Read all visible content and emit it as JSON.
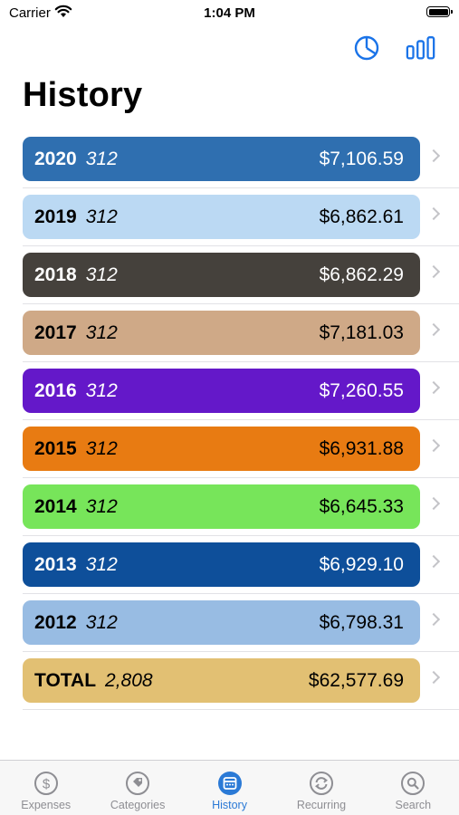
{
  "status_bar": {
    "carrier": "Carrier",
    "time": "1:04 PM"
  },
  "toolbar": {
    "pie_icon": "pie-chart-icon",
    "bars_icon": "bar-chart-icon",
    "accent": "#1a73e8"
  },
  "title": "History",
  "rows": [
    {
      "year": "2020",
      "count": "312",
      "amount": "$7,106.59",
      "color": "#2f6fb0",
      "text": "dark"
    },
    {
      "year": "2019",
      "count": "312",
      "amount": "$6,862.61",
      "color": "#bbd9f3",
      "text": "light"
    },
    {
      "year": "2018",
      "count": "312",
      "amount": "$6,862.29",
      "color": "#45413c",
      "text": "dark"
    },
    {
      "year": "2017",
      "count": "312",
      "amount": "$7,181.03",
      "color": "#cfa987",
      "text": "light"
    },
    {
      "year": "2016",
      "count": "312",
      "amount": "$7,260.55",
      "color": "#6418c9",
      "text": "dark"
    },
    {
      "year": "2015",
      "count": "312",
      "amount": "$6,931.88",
      "color": "#e87b12",
      "text": "light"
    },
    {
      "year": "2014",
      "count": "312",
      "amount": "$6,645.33",
      "color": "#77e55a",
      "text": "light"
    },
    {
      "year": "2013",
      "count": "312",
      "amount": "$6,929.10",
      "color": "#0e4f9a",
      "text": "dark"
    },
    {
      "year": "2012",
      "count": "312",
      "amount": "$6,798.31",
      "color": "#98bce3",
      "text": "light"
    },
    {
      "year": "TOTAL",
      "count": "2,808",
      "amount": "$62,577.69",
      "color": "#e2c073",
      "text": "light"
    }
  ],
  "tabs": [
    {
      "label": "Expenses",
      "icon": "dollar-icon",
      "active": false
    },
    {
      "label": "Categories",
      "icon": "tag-icon",
      "active": false
    },
    {
      "label": "History",
      "icon": "calendar-icon",
      "active": true
    },
    {
      "label": "Recurring",
      "icon": "repeat-icon",
      "active": false
    },
    {
      "label": "Search",
      "icon": "search-icon",
      "active": false
    }
  ]
}
